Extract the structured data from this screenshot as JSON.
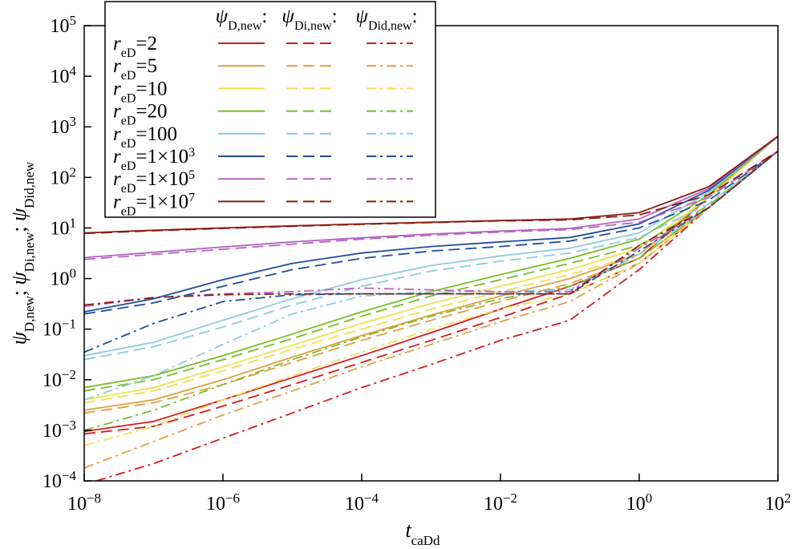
{
  "chart_data": {
    "type": "line",
    "xlabel": "t",
    "xlabel_sub": "caDd",
    "ylabel_parts": [
      {
        "sym": "ψ",
        "sub": "D,new"
      },
      {
        "sym": "ψ",
        "sub": "Di,new"
      },
      {
        "sym": "ψ",
        "sub": "Did,new"
      }
    ],
    "ylabel_sep": ";",
    "x_scale": "log",
    "y_scale": "log",
    "xlim": [
      1e-08,
      100
    ],
    "ylim": [
      0.0001,
      100000
    ],
    "x_ticks": [
      {
        "base": "10",
        "exp": "−8",
        "value": 1e-08
      },
      {
        "base": "10",
        "exp": "−6",
        "value": 1e-06
      },
      {
        "base": "10",
        "exp": "−4",
        "value": 0.0001
      },
      {
        "base": "10",
        "exp": "−2",
        "value": 0.01
      },
      {
        "base": "10",
        "exp": "0",
        "value": 1
      },
      {
        "base": "10",
        "exp": "2",
        "value": 100
      }
    ],
    "y_ticks": [
      {
        "base": "10",
        "exp": "−4",
        "value": 0.0001
      },
      {
        "base": "10",
        "exp": "−3",
        "value": 0.001
      },
      {
        "base": "10",
        "exp": "−2",
        "value": 0.01
      },
      {
        "base": "10",
        "exp": "−1",
        "value": 0.1
      },
      {
        "base": "10",
        "exp": "0",
        "value": 1
      },
      {
        "base": "10",
        "exp": "1",
        "value": 10
      },
      {
        "base": "10",
        "exp": "2",
        "value": 100
      },
      {
        "base": "10",
        "exp": "3",
        "value": 1000
      },
      {
        "base": "10",
        "exp": "4",
        "value": 10000
      },
      {
        "base": "10",
        "exp": "5",
        "value": 100000
      }
    ],
    "grid": false,
    "legend_position": "top-left",
    "legend_columns": [
      {
        "sym": "ψ",
        "sub": "D,new",
        "suffix": ":",
        "style": "solid"
      },
      {
        "sym": "ψ",
        "sub": "Di,new",
        "suffix": ":",
        "style": "dashed"
      },
      {
        "sym": "ψ",
        "sub": "Did,new",
        "suffix": ":",
        "style": "dashdot"
      }
    ],
    "groups": [
      {
        "label_sym": "r",
        "label_sub": "eD",
        "label_val": "=2",
        "label_exp": "",
        "color": "#d7191c",
        "series": {
          "D": {
            "x": [
              1e-08,
              1e-07,
              1e-06,
              1e-05,
              0.0001,
              0.001,
              0.01,
              0.1,
              1,
              10,
              100
            ],
            "y": [
              0.00095,
              0.0015,
              0.004,
              0.011,
              0.03,
              0.085,
              0.25,
              0.7,
              2.5,
              40,
              650
            ]
          },
          "Di": {
            "x": [
              1e-08,
              1e-07,
              1e-06,
              1e-05,
              0.0001,
              0.001,
              0.01,
              0.1,
              1,
              10,
              100
            ],
            "y": [
              0.00085,
              0.0012,
              0.003,
              0.008,
              0.022,
              0.06,
              0.17,
              0.5,
              2.0,
              25,
              330
            ]
          },
          "Did": {
            "x": [
              1.5e-08,
              1e-07,
              1e-06,
              1e-05,
              0.0001,
              0.001,
              0.01,
              0.1,
              1,
              10,
              100
            ],
            "y": [
              0.0001,
              0.00022,
              0.0007,
              0.0022,
              0.007,
              0.02,
              0.06,
              0.15,
              1.5,
              25,
              330
            ]
          }
        }
      },
      {
        "label_sym": "r",
        "label_sub": "eD",
        "label_val": "=5",
        "label_exp": "",
        "color": "#e0a040",
        "series": {
          "D": {
            "x": [
              1e-08,
              1e-07,
              1e-06,
              1e-05,
              0.0001,
              0.001,
              0.01,
              0.1,
              1,
              10,
              100
            ],
            "y": [
              0.0025,
              0.004,
              0.01,
              0.028,
              0.075,
              0.19,
              0.45,
              1.0,
              3.0,
              40,
              650
            ]
          },
          "Di": {
            "x": [
              1e-08,
              1e-07,
              1e-06,
              1e-05,
              0.0001,
              0.001,
              0.01,
              0.1,
              1,
              10,
              100
            ],
            "y": [
              0.0022,
              0.0035,
              0.008,
              0.022,
              0.06,
              0.15,
              0.35,
              0.8,
              2.5,
              25,
              330
            ]
          },
          "Did": {
            "x": [
              1e-08,
              1e-07,
              1e-06,
              1e-05,
              0.0001,
              0.001,
              0.01,
              0.1,
              1,
              10,
              100
            ],
            "y": [
              0.00018,
              0.0006,
              0.002,
              0.006,
              0.018,
              0.05,
              0.14,
              0.35,
              2.0,
              25,
              330
            ]
          }
        }
      },
      {
        "label_sym": "r",
        "label_sub": "eD",
        "label_val": "=10",
        "label_exp": "",
        "color": "#f0e050",
        "series": {
          "D": {
            "x": [
              1e-08,
              1e-07,
              1e-06,
              1e-05,
              0.0001,
              0.001,
              0.01,
              0.1,
              1,
              10,
              100
            ],
            "y": [
              0.004,
              0.007,
              0.018,
              0.048,
              0.13,
              0.32,
              0.7,
              1.5,
              4.0,
              40,
              650
            ]
          },
          "Di": {
            "x": [
              1e-08,
              1e-07,
              1e-06,
              1e-05,
              0.0001,
              0.001,
              0.01,
              0.1,
              1,
              10,
              100
            ],
            "y": [
              0.0035,
              0.006,
              0.015,
              0.04,
              0.1,
              0.25,
              0.55,
              1.2,
              3.0,
              25,
              330
            ]
          },
          "Did": {
            "x": [
              1e-08,
              1e-07,
              1e-06,
              1e-05,
              0.0001,
              0.001,
              0.01,
              0.1,
              1,
              10,
              100
            ],
            "y": [
              0.0005,
              0.0012,
              0.004,
              0.012,
              0.035,
              0.1,
              0.25,
              0.5,
              2.0,
              25,
              330
            ]
          }
        }
      },
      {
        "label_sym": "r",
        "label_sub": "eD",
        "label_val": "=20",
        "label_exp": "",
        "color": "#78be28",
        "series": {
          "D": {
            "x": [
              1e-08,
              1e-07,
              1e-06,
              1e-05,
              0.0001,
              0.001,
              0.01,
              0.1,
              1,
              10,
              100
            ],
            "y": [
              0.007,
              0.012,
              0.03,
              0.08,
              0.22,
              0.55,
              1.2,
              2.5,
              6.0,
              45,
              650
            ]
          },
          "Di": {
            "x": [
              1e-08,
              1e-07,
              1e-06,
              1e-05,
              0.0001,
              0.001,
              0.01,
              0.1,
              1,
              10,
              100
            ],
            "y": [
              0.006,
              0.01,
              0.025,
              0.065,
              0.18,
              0.45,
              0.95,
              2.0,
              4.5,
              28,
              330
            ]
          },
          "Did": {
            "x": [
              1e-08,
              1e-07,
              1e-06,
              1e-05,
              0.0001,
              0.001,
              0.01,
              0.1,
              1,
              10,
              100
            ],
            "y": [
              0.001,
              0.0025,
              0.008,
              0.025,
              0.07,
              0.18,
              0.4,
              0.7,
              2.5,
              25,
              330
            ]
          }
        }
      },
      {
        "label_sym": "r",
        "label_sub": "eD",
        "label_val": "=100",
        "label_exp": "",
        "color": "#8ecbdf",
        "series": {
          "D": {
            "x": [
              1e-08,
              1e-07,
              1e-06,
              1e-05,
              0.0001,
              0.001,
              0.01,
              0.1,
              1,
              10,
              100
            ],
            "y": [
              0.03,
              0.055,
              0.15,
              0.4,
              0.95,
              1.8,
              2.8,
              4.0,
              8.0,
              50,
              650
            ]
          },
          "Di": {
            "x": [
              1e-08,
              1e-07,
              1e-06,
              1e-05,
              0.0001,
              0.001,
              0.01,
              0.1,
              1,
              10,
              100
            ],
            "y": [
              0.025,
              0.045,
              0.11,
              0.3,
              0.7,
              1.4,
              2.2,
              3.2,
              6.5,
              30,
              330
            ]
          },
          "Did": {
            "x": [
              1e-08,
              1e-07,
              1e-06,
              1e-05,
              0.0001,
              0.001,
              0.01,
              0.1,
              1,
              10,
              100
            ],
            "y": [
              0.004,
              0.012,
              0.05,
              0.2,
              0.45,
              0.55,
              0.55,
              0.6,
              3.0,
              25,
              330
            ]
          }
        }
      },
      {
        "label_sym": "r",
        "label_sub": "eD",
        "label_val": "=1×10",
        "label_exp": "3",
        "color": "#1f4e9c",
        "series": {
          "D": {
            "x": [
              1e-08,
              1e-07,
              1e-06,
              1e-05,
              0.0001,
              0.001,
              0.01,
              0.1,
              1,
              10,
              100
            ],
            "y": [
              0.22,
              0.4,
              0.95,
              2.0,
              3.2,
              4.3,
              5.3,
              6.5,
              12,
              55,
              650
            ]
          },
          "Di": {
            "x": [
              1e-08,
              1e-07,
              1e-06,
              1e-05,
              0.0001,
              0.001,
              0.01,
              0.1,
              1,
              10,
              100
            ],
            "y": [
              0.2,
              0.33,
              0.7,
              1.5,
              2.5,
              3.5,
              4.3,
              5.5,
              10,
              35,
              330
            ]
          },
          "Did": {
            "x": [
              1e-08,
              1e-07,
              1e-06,
              1e-05,
              0.0001,
              0.001,
              0.01,
              0.1,
              1,
              10,
              100
            ],
            "y": [
              0.035,
              0.13,
              0.35,
              0.48,
              0.5,
              0.5,
              0.5,
              0.5,
              3.5,
              25,
              330
            ]
          }
        }
      },
      {
        "label_sym": "r",
        "label_sub": "eD",
        "label_val": "=1×10",
        "label_exp": "5",
        "color": "#b565c2",
        "series": {
          "D": {
            "x": [
              1e-08,
              1e-07,
              1e-06,
              1e-05,
              0.0001,
              0.001,
              0.01,
              0.1,
              1,
              10,
              100
            ],
            "y": [
              2.6,
              3.3,
              4.2,
              5.3,
              6.4,
              7.6,
              8.7,
              9.8,
              15,
              60,
              650
            ]
          },
          "Di": {
            "x": [
              1e-08,
              1e-07,
              1e-06,
              1e-05,
              0.0001,
              0.001,
              0.01,
              0.1,
              1,
              10,
              100
            ],
            "y": [
              2.4,
              3.0,
              3.8,
              4.8,
              6.0,
              7.2,
              8.3,
              9.3,
              13,
              40,
              330
            ]
          },
          "Did": {
            "x": [
              1e-08,
              1e-07,
              1e-06,
              1e-05,
              0.0001,
              0.001,
              0.01,
              0.1,
              1,
              10,
              100
            ],
            "y": [
              0.28,
              0.42,
              0.5,
              0.55,
              0.65,
              0.6,
              0.55,
              0.55,
              4.0,
              25,
              330
            ]
          }
        }
      },
      {
        "label_sym": "r",
        "label_sub": "eD",
        "label_val": "=1×10",
        "label_exp": "7",
        "color": "#8b1a10",
        "series": {
          "D": {
            "x": [
              1e-08,
              1e-07,
              1e-06,
              1e-05,
              0.0001,
              0.001,
              0.01,
              0.1,
              1,
              10,
              100
            ],
            "y": [
              8.0,
              9.0,
              10,
              11,
              12,
              13,
              14,
              15,
              20,
              65,
              650
            ]
          },
          "Di": {
            "x": [
              1e-08,
              1e-07,
              1e-06,
              1e-05,
              0.0001,
              0.001,
              0.01,
              0.1,
              1,
              10,
              100
            ],
            "y": [
              7.8,
              8.8,
              9.8,
              10.8,
              11.8,
              12.8,
              13.8,
              14.5,
              18,
              45,
              330
            ]
          },
          "Did": {
            "x": [
              1e-08,
              1e-07,
              1e-06,
              1e-05,
              0.0001,
              0.001,
              0.01,
              0.1,
              1,
              10,
              100
            ],
            "y": [
              0.3,
              0.42,
              0.48,
              0.5,
              0.5,
              0.5,
              0.5,
              0.5,
              4.5,
              25,
              330
            ]
          }
        }
      }
    ]
  }
}
